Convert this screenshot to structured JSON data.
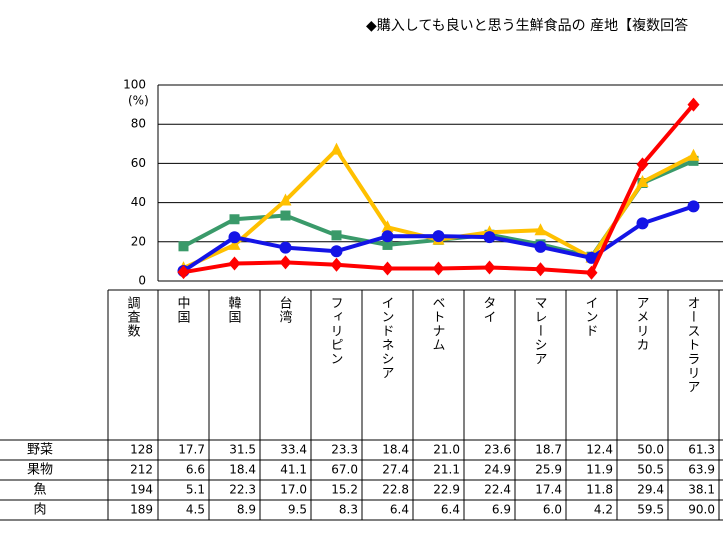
{
  "chart_data": {
    "type": "line",
    "title": "◆購入しても良いと思う生鮮食品の 産地【複数回答",
    "y_unit": "(%)",
    "count_label": "調査数",
    "categories": [
      "中国",
      "韓国",
      "台湾",
      "フィリピン",
      "インドネシア",
      "ベトナム",
      "タイ",
      "マレーシア",
      "インド",
      "アメリカ",
      "オーストラリア"
    ],
    "ylim": [
      0,
      100
    ],
    "yticks": [
      0,
      20,
      40,
      60,
      80,
      100
    ],
    "grid": true,
    "series": [
      {
        "name": "野菜",
        "color": "#3a9a6a",
        "marker": "square",
        "n": 128,
        "values": [
          17.7,
          31.5,
          33.4,
          23.3,
          18.4,
          21.0,
          23.6,
          18.7,
          12.4,
          50.0,
          61.3
        ],
        "value_labels": [
          "17.7",
          "31.5",
          "33.4",
          "23.3",
          "18.4",
          "21.0",
          "23.6",
          "18.7",
          "12.4",
          "50.0",
          "61.3"
        ]
      },
      {
        "name": "果物",
        "color": "#ffc000",
        "marker": "triangle",
        "n": 212,
        "values": [
          6.6,
          18.4,
          41.1,
          67.0,
          27.4,
          21.1,
          24.9,
          25.9,
          11.9,
          50.5,
          63.9
        ],
        "value_labels": [
          "6.6",
          "18.4",
          "41.1",
          "67.0",
          "27.4",
          "21.1",
          "24.9",
          "25.9",
          "11.9",
          "50.5",
          "63.9"
        ]
      },
      {
        "name": "魚",
        "color": "#1414e6",
        "marker": "circle",
        "n": 194,
        "values": [
          5.1,
          22.3,
          17.0,
          15.2,
          22.8,
          22.9,
          22.4,
          17.4,
          11.8,
          29.4,
          38.1
        ],
        "value_labels": [
          "5.1",
          "22.3",
          "17.0",
          "15.2",
          "22.8",
          "22.9",
          "22.4",
          "17.4",
          "11.8",
          "29.4",
          "38.1"
        ]
      },
      {
        "name": "肉",
        "color": "#ff0000",
        "marker": "diamond",
        "n": 189,
        "values": [
          4.5,
          8.9,
          9.5,
          8.3,
          6.4,
          6.4,
          6.9,
          6.0,
          4.2,
          59.5,
          90.0
        ],
        "value_labels": [
          "4.5",
          "8.9",
          "9.5",
          "8.3",
          "6.4",
          "6.4",
          "6.9",
          "6.0",
          "4.2",
          "59.5",
          "90.0"
        ]
      }
    ]
  }
}
